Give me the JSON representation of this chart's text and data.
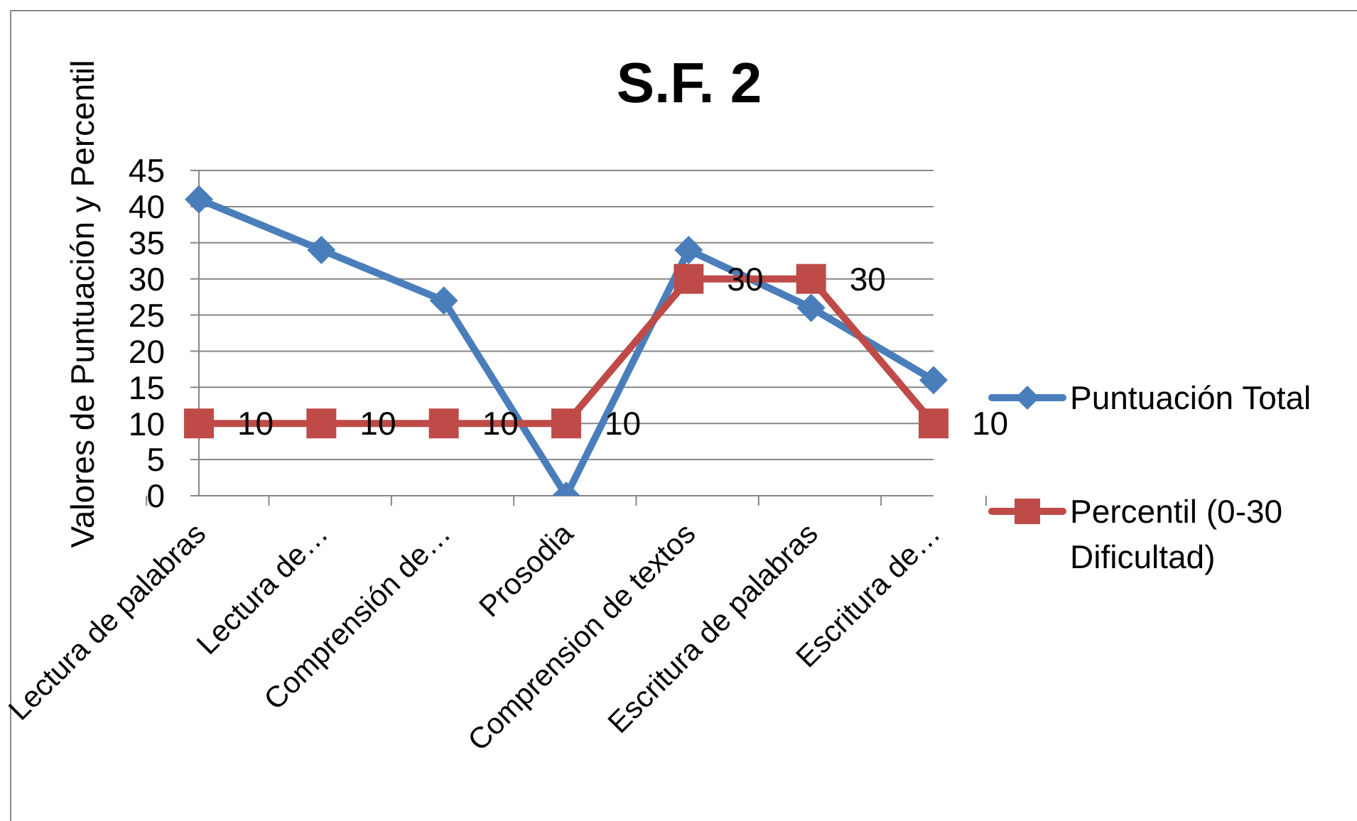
{
  "chart_data": {
    "type": "line",
    "title": "S.F. 2",
    "ylabel": "Valores de Puntuación y Percentil",
    "categories": [
      "Lectura de palabras",
      "Lectura de…",
      "Comprensión de…",
      "Prosodia",
      "Comprension de textos",
      "Escritura de palabras",
      "Escritura de…"
    ],
    "series": [
      {
        "name": "Puntuación Total",
        "color": "#4a7ebb",
        "marker": "diamond",
        "values": [
          41,
          34,
          27,
          0,
          34,
          26,
          16
        ]
      },
      {
        "name": "Percentil (0-30 Dificultad)",
        "color": "#be4b48",
        "marker": "square",
        "values": [
          10,
          10,
          10,
          10,
          30,
          30,
          10
        ],
        "value_labels": [
          "10",
          "10",
          "10",
          "10",
          "30",
          "30",
          "10"
        ]
      }
    ],
    "ylim": [
      0,
      45
    ],
    "yticks": [
      0,
      5,
      10,
      15,
      20,
      25,
      30,
      35,
      40,
      45
    ],
    "grid": "y",
    "legend": "right",
    "line_style": "solid"
  }
}
